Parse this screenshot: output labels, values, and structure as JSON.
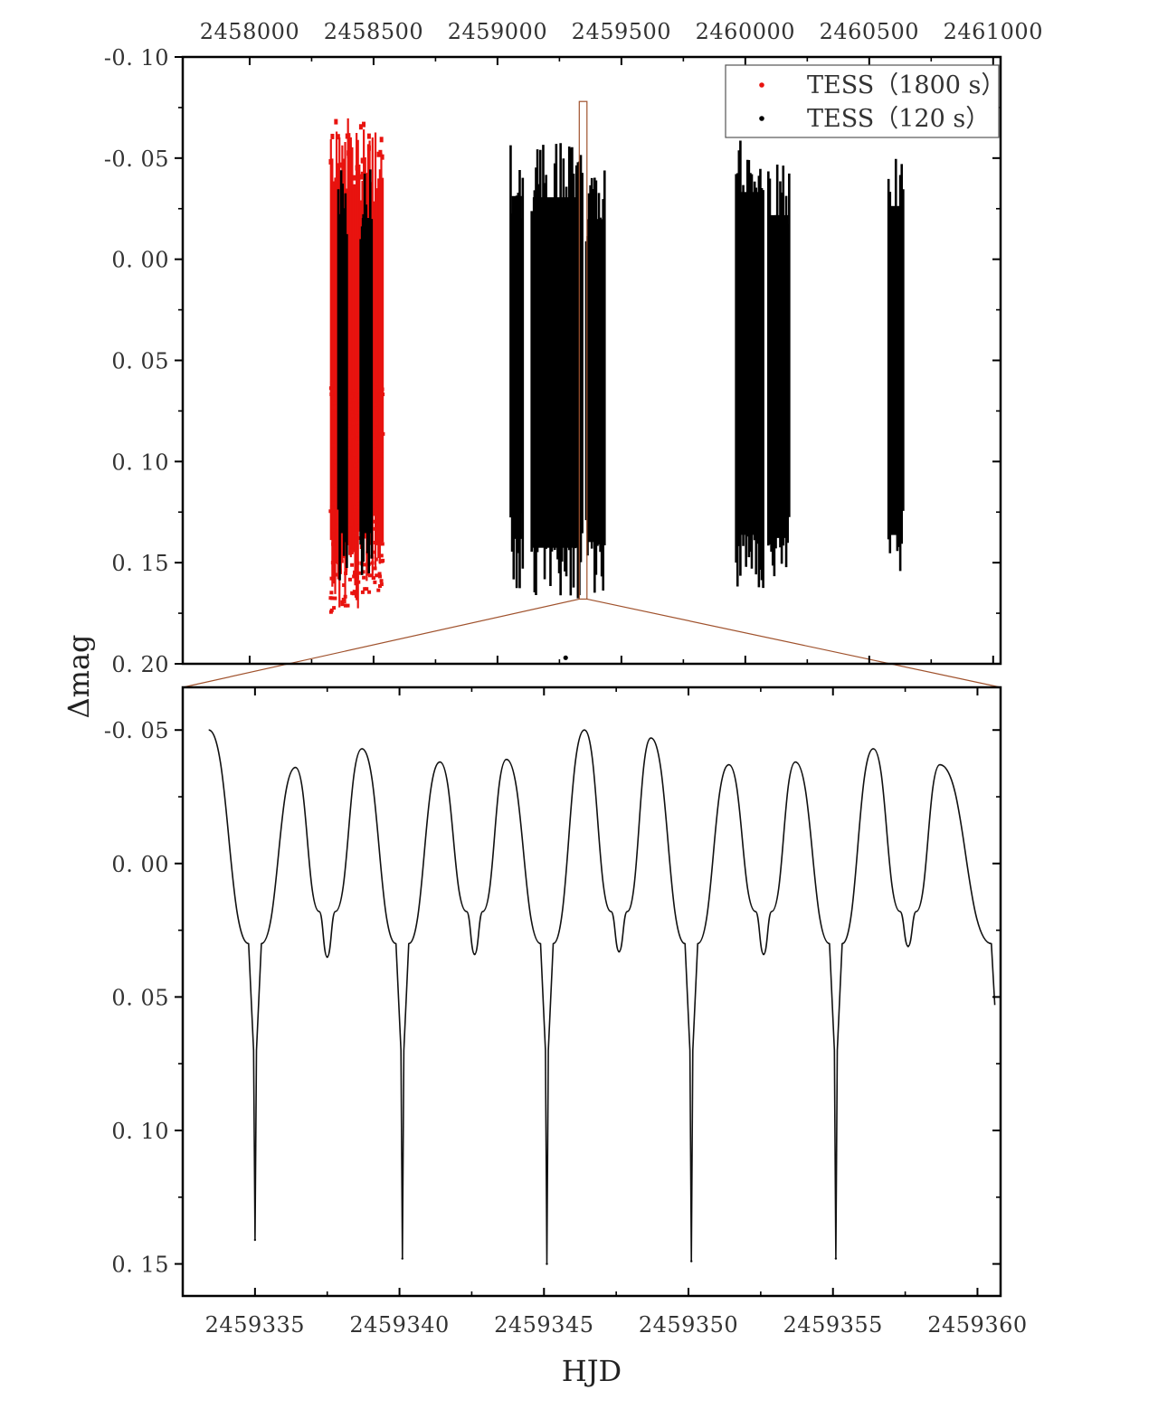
{
  "shared": {
    "ylabel": "Δmag",
    "xlabel": "HJD"
  },
  "chart_data": [
    {
      "type": "scatter",
      "panel": "top",
      "x_axis_position": "top",
      "xlim": [
        2457730,
        2461030
      ],
      "ylim": [
        -0.1,
        0.2
      ],
      "y_inverted": true,
      "x_ticks": [
        "2458000",
        "2458500",
        "2459000",
        "2459500",
        "2460000",
        "2460500",
        "2461000"
      ],
      "x_tick_values": [
        2458000,
        2458500,
        2459000,
        2459500,
        2460000,
        2460500,
        2461000
      ],
      "y_ticks": [
        "-0. 10",
        "-0. 05",
        "0. 00",
        "0. 05",
        "0. 10",
        "0. 15",
        "0. 20"
      ],
      "y_tick_values": [
        -0.1,
        -0.05,
        0.0,
        0.05,
        0.1,
        0.15,
        0.2
      ],
      "legend_position": "top-right",
      "zoom_window": [
        2459330,
        2459361
      ],
      "series": [
        {
          "name": "TESS（1800  s）",
          "color": "#e8130f",
          "segments": [
            {
              "x_start": 2458325,
              "x_end": 2458440,
              "y_min": -0.07,
              "y_max": 0.175
            },
            {
              "x_start": 2458440,
              "x_end": 2458540,
              "y_min": -0.07,
              "y_max": 0.165
            }
          ]
        },
        {
          "name": "TESS（120  s）",
          "color": "#000000",
          "segments": [
            {
              "x_start": 2458355,
              "x_end": 2458395,
              "y_min": -0.045,
              "y_max": 0.16
            },
            {
              "x_start": 2458445,
              "x_end": 2458495,
              "y_min": -0.045,
              "y_max": 0.16
            },
            {
              "x_start": 2459050,
              "x_end": 2459105,
              "y_min": -0.058,
              "y_max": 0.165
            },
            {
              "x_start": 2459135,
              "x_end": 2459345,
              "y_min": -0.058,
              "y_max": 0.17
            },
            {
              "x_start": 2459355,
              "x_end": 2459435,
              "y_min": -0.045,
              "y_max": 0.165
            },
            {
              "x_start": 2459960,
              "x_end": 2460075,
              "y_min": -0.06,
              "y_max": 0.163
            },
            {
              "x_start": 2460090,
              "x_end": 2460180,
              "y_min": -0.047,
              "y_max": 0.163
            },
            {
              "x_start": 2460575,
              "x_end": 2460640,
              "y_min": -0.052,
              "y_max": 0.162
            }
          ],
          "outliers": [
            {
              "x": 2459275,
              "y": 0.197
            }
          ]
        }
      ]
    },
    {
      "type": "line",
      "panel": "bottom",
      "xlim": [
        2459332.5,
        2459360.8
      ],
      "ylim": [
        -0.066,
        0.162
      ],
      "y_inverted": true,
      "x_ticks": [
        "2459335",
        "2459340",
        "2459345",
        "2459350",
        "2459355",
        "2459360"
      ],
      "x_tick_values": [
        2459335,
        2459340,
        2459345,
        2459350,
        2459355,
        2459360
      ],
      "y_ticks": [
        "-0. 05",
        "0. 00",
        "0. 05",
        "0. 10",
        "0. 15"
      ],
      "y_tick_values": [
        -0.05,
        0.0,
        0.05,
        0.1,
        0.15
      ],
      "period": 5.05,
      "primary_minima_x": [
        2459335.0,
        2459340.1,
        2459345.1,
        2459350.1,
        2459355.1
      ],
      "primary_minima_y": [
        0.141,
        0.148,
        0.15,
        0.149,
        0.148
      ],
      "secondary_minima_x": [
        2459337.5,
        2459342.6,
        2459347.6,
        2459352.6,
        2459357.6
      ],
      "secondary_minima_y": [
        0.035,
        0.034,
        0.033,
        0.034,
        0.031
      ],
      "maxima": [
        {
          "x": 2459333.4,
          "y": -0.05
        },
        {
          "x": 2459336.4,
          "y": -0.036
        },
        {
          "x": 2459338.7,
          "y": -0.043
        },
        {
          "x": 2459341.4,
          "y": -0.038
        },
        {
          "x": 2459343.7,
          "y": -0.039
        },
        {
          "x": 2459346.4,
          "y": -0.05
        },
        {
          "x": 2459348.7,
          "y": -0.047
        },
        {
          "x": 2459351.4,
          "y": -0.037
        },
        {
          "x": 2459353.7,
          "y": -0.038
        },
        {
          "x": 2459356.4,
          "y": -0.043
        },
        {
          "x": 2459358.7,
          "y": -0.037
        }
      ],
      "end_point": {
        "x": 2459360.6,
        "y": 0.053
      },
      "color": "#111111"
    }
  ]
}
